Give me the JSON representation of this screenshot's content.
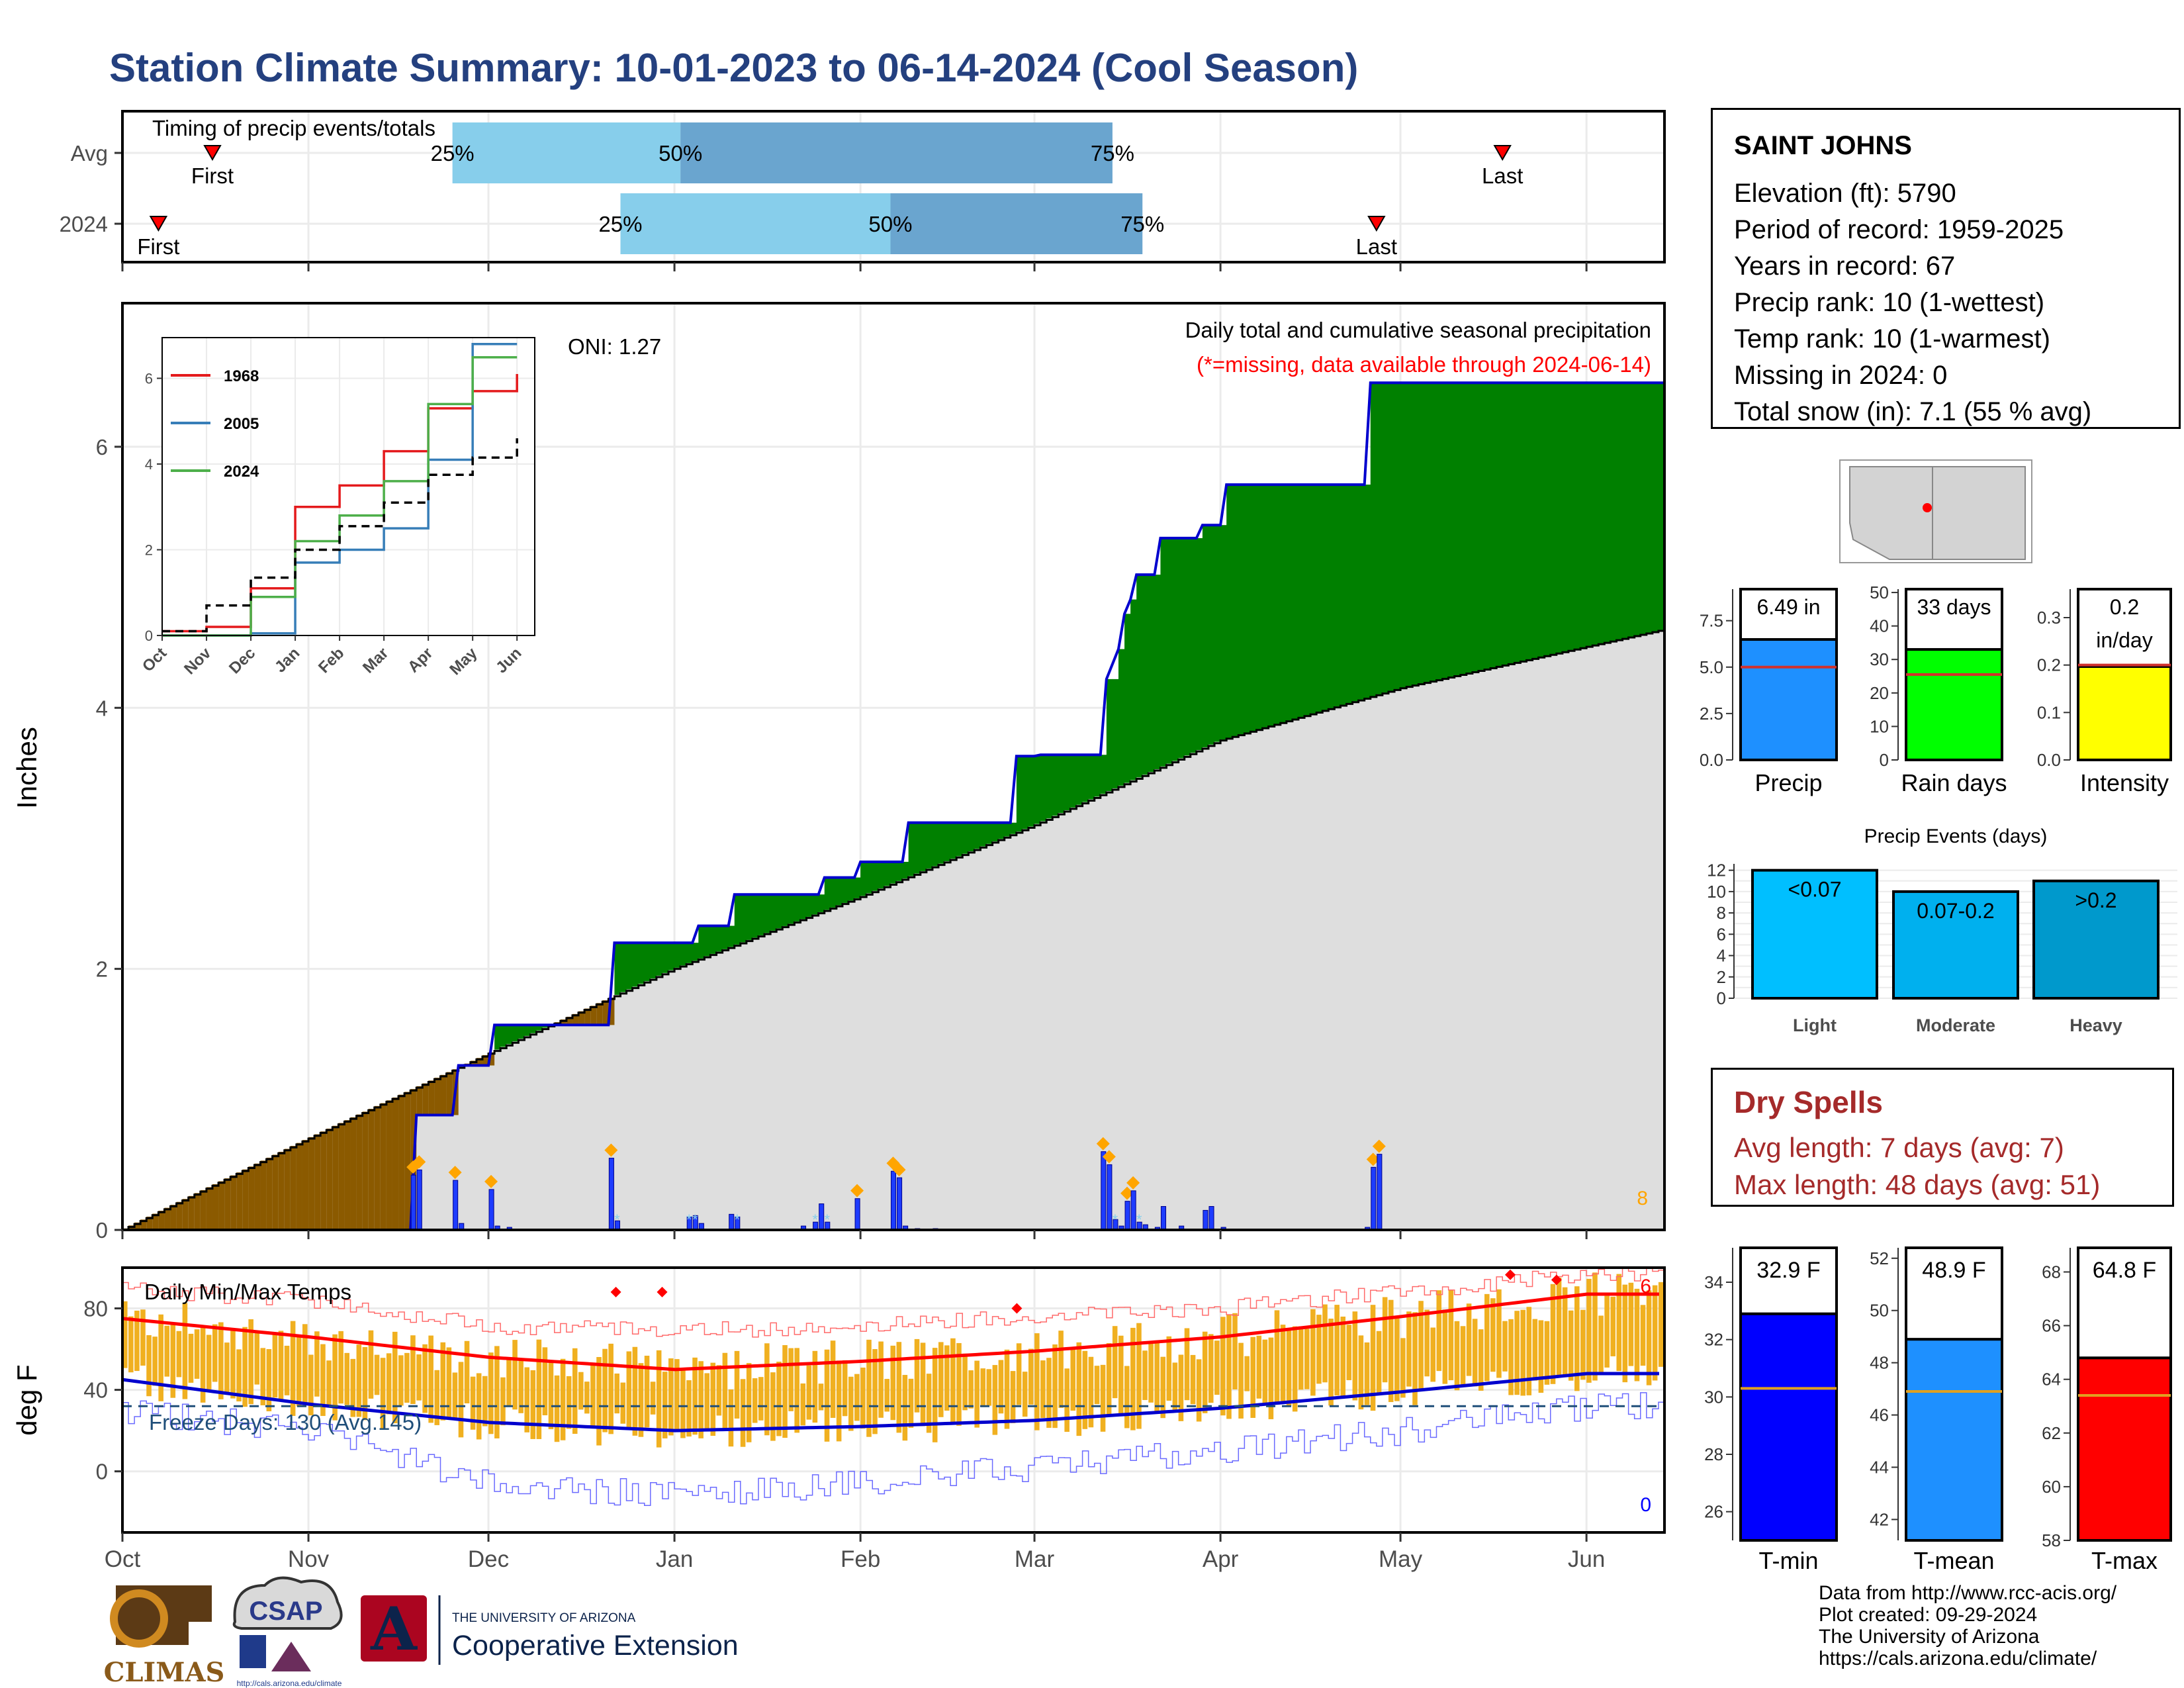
{
  "title": "Station Climate Summary: 10-01-2023 to 06-14-2024 (Cool Season)",
  "colors": {
    "title": "#24407f",
    "cum_2024": "#008000",
    "cum_dry": "#8b5a00",
    "cum_avg": "#dedede",
    "daily_bar": "#1e3cff",
    "precip_bar": "#1e90ff",
    "raindays_bar": "#00ff00",
    "intensity_bar": "#ffff00",
    "light": "#00bfff",
    "moderate": "#00a8e8",
    "heavy": "#0099cc",
    "tmin": "#0000ff",
    "tmean": "#1e90ff",
    "tmax": "#ff0000",
    "temp_bar": "#f0b020",
    "dry": "#a52a2a",
    "q1": "#87ceeb",
    "q2": "#6aa5cf"
  },
  "timing": {
    "title": "Timing of precip events/totals",
    "rows": [
      {
        "label": "Avg",
        "first": "First",
        "last": "Last",
        "p25": "25%",
        "p50": "50%",
        "p75": "75%",
        "first_date": "2023-10-16",
        "p25_date": "2023-11-25",
        "p50_date": "2024-01-02",
        "p75_date": "2024-03-14",
        "last_date": "2024-05-18"
      },
      {
        "label": "2024",
        "first": "First",
        "last": "Last",
        "p25": "25%",
        "p50": "50%",
        "p75": "75%",
        "first_date": "2023-10-07",
        "p25_date": "2023-12-23",
        "p50_date": "2024-02-06",
        "p75_date": "2024-03-19",
        "last_date": "2024-04-27"
      }
    ]
  },
  "x_months": [
    "Oct",
    "Nov",
    "Dec",
    "Jan",
    "Feb",
    "Mar",
    "Apr",
    "May",
    "Jun"
  ],
  "precip_panel": {
    "ylabel": "Inches",
    "ticks": [
      0,
      2,
      4,
      6
    ],
    "ylim": [
      0,
      7.1
    ],
    "caption": "Daily total and cumulative seasonal precipitation",
    "missing_note": "(*=missing, data available through 2024-06-14)",
    "oni": "ONI: 1.27",
    "right_count": "8"
  },
  "inset": {
    "x_ticks": [
      "Oct",
      "Nov",
      "Dec",
      "Jan",
      "Feb",
      "Mar",
      "Apr",
      "May",
      "Jun"
    ],
    "y_ticks": [
      0,
      2,
      4,
      6
    ],
    "legend": [
      {
        "name": "1968",
        "color": "#e41a1c"
      },
      {
        "name": "2005",
        "color": "#377eb8"
      },
      {
        "name": "2024",
        "color": "#4daf4a"
      }
    ]
  },
  "temp_panel": {
    "title": "Daily Min/Max Temps",
    "ylabel": "deg F",
    "ticks": [
      0,
      40,
      80
    ],
    "ylim": [
      -30,
      100
    ],
    "freeze": "Freeze Days: 130 (Avg.145)",
    "max_count": "6",
    "min_count": "0"
  },
  "station": {
    "name": "SAINT JOHNS",
    "lines": [
      "Elevation (ft): 5790",
      "Period of record: 1959-2025",
      "Years in record: 67",
      "Precip rank: 10 (1-wettest)",
      "Temp rank: 10 (1-warmest)",
      "Missing in 2024: 0",
      "Total snow (in): 7.1 (55 % avg)"
    ]
  },
  "summary_bars": [
    {
      "label": "Precip",
      "value_text": "6.49 in",
      "value": 6.49,
      "avg": 5.0,
      "ticks": [
        "0.0",
        "2.5",
        "5.0",
        "7.5"
      ],
      "tick_vals": [
        0,
        2.5,
        5,
        7.5
      ],
      "ymax": 9.2,
      "color": "#1e90ff"
    },
    {
      "label": "Rain days",
      "value_text": "33 days",
      "value": 33,
      "avg": 25.5,
      "ticks": [
        "0",
        "10",
        "20",
        "30",
        "40",
        "50"
      ],
      "tick_vals": [
        0,
        10,
        20,
        30,
        40,
        50
      ],
      "ymax": 51,
      "color": "#00ff00"
    },
    {
      "label": "Intensity",
      "value_text": "0.2",
      "value_text2": "in/day",
      "value": 0.197,
      "avg": 0.2,
      "ticks": [
        "0.0",
        "0.1",
        "0.2",
        "0.3"
      ],
      "tick_vals": [
        0,
        0.1,
        0.2,
        0.3
      ],
      "ymax": 0.36,
      "color": "#ffff00"
    }
  ],
  "precip_events": {
    "title": "Precip Events (days)",
    "ticks": [
      0,
      2,
      4,
      6,
      8,
      10,
      12
    ],
    "bars": [
      {
        "label": "Light",
        "text": "<0.07",
        "value": 12,
        "color": "#00bfff"
      },
      {
        "label": "Moderate",
        "text": "0.07-0.2",
        "value": 10,
        "color": "#00b0ee"
      },
      {
        "label": "Heavy",
        "text": ">0.2",
        "value": 11,
        "color": "#0099cc"
      }
    ]
  },
  "dry_spells": {
    "title": "Dry Spells",
    "avg": "Avg length: 7 days (avg: 7)",
    "max": "Max length: 48 days (avg: 51)"
  },
  "temp_bars": [
    {
      "label": "T-min",
      "value_text": "32.9 F",
      "value": 32.9,
      "avg": 30.3,
      "ticks": [
        26,
        28,
        30,
        32,
        34
      ],
      "ymin": 25,
      "ymax": 35.2,
      "color": "#0000ff"
    },
    {
      "label": "T-mean",
      "value_text": "48.9 F",
      "value": 48.9,
      "avg": 46.9,
      "ticks": [
        42,
        44,
        46,
        48,
        50,
        52
      ],
      "ymin": 41.2,
      "ymax": 52.4,
      "color": "#1e90ff"
    },
    {
      "label": "T-max",
      "value_text": "64.8 F",
      "value": 64.8,
      "avg": 63.4,
      "ticks": [
        58,
        60,
        62,
        64,
        66,
        68
      ],
      "ymin": 58,
      "ymax": 68.9,
      "color": "#ff0000"
    }
  ],
  "logos": {
    "climas": "CLIMAS",
    "csap": "CSAP",
    "csap_url": "http://cals.arizona.edu/climate",
    "ua_line1": "THE UNIVERSITY OF ARIZONA",
    "ua_line2": "Cooperative Extension",
    "ua_mark": "A"
  },
  "credits": [
    "Data from http://www.rcc-acis.org/",
    "Plot created: 09-29-2024",
    "The University of Arizona",
    "https://cals.arizona.edu/climate/"
  ],
  "chart_data": [
    {
      "type": "area",
      "title": "Daily total and cumulative seasonal precipitation",
      "ylabel": "Inches",
      "ylim": [
        0,
        7.1
      ],
      "series": [
        {
          "name": "2024",
          "x": [
            "2023-10-01",
            "2023-11-18",
            "2023-11-19",
            "2023-11-25",
            "2023-11-26",
            "2023-12-01",
            "2023-12-02",
            "2023-12-21",
            "2023-12-22",
            "2024-01-04",
            "2024-01-05",
            "2024-01-10",
            "2024-01-11",
            "2024-01-25",
            "2024-01-26",
            "2024-01-31",
            "2024-02-01",
            "2024-02-08",
            "2024-02-09",
            "2024-02-26",
            "2024-02-27",
            "2024-03-01",
            "2024-03-02",
            "2024-03-10",
            "2024-03-12",
            "2024-03-13",
            "2024-03-15",
            "2024-03-16",
            "2024-03-17",
            "2024-03-18",
            "2024-03-21",
            "2024-03-22",
            "2024-03-28",
            "2024-03-29",
            "2024-04-01",
            "2024-04-02",
            "2024-04-25",
            "2024-04-26",
            "2024-06-14"
          ],
          "values": [
            0,
            0,
            0.88,
            0.88,
            1.26,
            1.26,
            1.57,
            1.57,
            2.2,
            2.2,
            2.33,
            2.33,
            2.57,
            2.57,
            2.7,
            2.7,
            2.82,
            2.82,
            3.12,
            3.12,
            3.63,
            3.63,
            3.64,
            3.64,
            3.64,
            4.22,
            4.45,
            4.72,
            4.83,
            5.02,
            5.02,
            5.3,
            5.3,
            5.4,
            5.4,
            5.71,
            5.71,
            6.49,
            6.49
          ]
        },
        {
          "name": "Avg",
          "x": [
            "2023-10-01",
            "2023-11-01",
            "2023-12-01",
            "2024-01-01",
            "2024-02-01",
            "2024-03-01",
            "2024-04-01",
            "2024-05-01",
            "2024-06-14"
          ],
          "values": [
            0,
            0.7,
            1.35,
            2.0,
            2.55,
            3.1,
            3.75,
            4.15,
            4.6
          ]
        }
      ]
    },
    {
      "type": "bar",
      "title": "Daily precipitation",
      "x": [
        "2023-11-18",
        "2023-11-19",
        "2023-11-25",
        "2023-11-26",
        "2023-12-01",
        "2023-12-02",
        "2023-12-04",
        "2023-12-21",
        "2023-12-22",
        "2024-01-03",
        "2024-01-04",
        "2024-01-05",
        "2024-01-10",
        "2024-01-11",
        "2024-01-22",
        "2024-01-24",
        "2024-01-25",
        "2024-01-26",
        "2024-01-31",
        "2024-02-06",
        "2024-02-07",
        "2024-02-08",
        "2024-02-10",
        "2024-02-13",
        "2024-03-12",
        "2024-03-13",
        "2024-03-14",
        "2024-03-15",
        "2024-03-16",
        "2024-03-17",
        "2024-03-18",
        "2024-03-19",
        "2024-03-21",
        "2024-03-22",
        "2024-03-25",
        "2024-03-29",
        "2024-03-30",
        "2024-04-01",
        "2024-04-25",
        "2024-04-26",
        "2024-04-27"
      ],
      "values": [
        0.42,
        0.46,
        0.38,
        0.05,
        0.31,
        0.03,
        0.02,
        0.55,
        0.07,
        0.1,
        0.11,
        0.05,
        0.12,
        0.1,
        0.03,
        0.06,
        0.2,
        0.06,
        0.24,
        0.45,
        0.4,
        0.03,
        0.01,
        0.01,
        0.6,
        0.5,
        0.08,
        0.03,
        0.22,
        0.3,
        0.06,
        0.04,
        0.02,
        0.18,
        0.03,
        0.15,
        0.18,
        0.02,
        0.02,
        0.48,
        0.58
      ]
    },
    {
      "type": "line",
      "title": "Cumulative precipitation comparison",
      "x": [
        "Oct",
        "Nov",
        "Dec",
        "Jan",
        "Feb",
        "Mar",
        "Apr",
        "May",
        "Jun"
      ],
      "series": [
        {
          "name": "1968",
          "values": [
            0.1,
            0.2,
            1.1,
            3.0,
            3.5,
            4.3,
            5.3,
            5.7,
            6.1
          ]
        },
        {
          "name": "2005",
          "values": [
            0,
            0,
            0.05,
            1.7,
            2.0,
            2.5,
            4.1,
            6.8,
            6.8
          ]
        },
        {
          "name": "2024",
          "values": [
            0,
            0,
            0.9,
            2.2,
            2.8,
            3.6,
            5.4,
            6.49,
            6.49
          ]
        },
        {
          "name": "Avg",
          "values": [
            0.1,
            0.7,
            1.35,
            2.0,
            2.55,
            3.1,
            3.75,
            4.15,
            4.6
          ]
        }
      ]
    },
    {
      "type": "line",
      "title": "Daily Min/Max Temps",
      "ylabel": "deg F",
      "ylim": [
        -30,
        100
      ],
      "x": [
        "Oct",
        "Nov",
        "Dec",
        "Jan",
        "Feb",
        "Mar",
        "Apr",
        "May",
        "Jun"
      ],
      "series": [
        {
          "name": "Normal max",
          "values": [
            75,
            66,
            56,
            50,
            54,
            59,
            66,
            76,
            87
          ]
        },
        {
          "name": "Normal min",
          "values": [
            45,
            33,
            24,
            20,
            22,
            25,
            31,
            39,
            48
          ]
        },
        {
          "name": "Record max",
          "values": [
            89,
            84,
            71,
            69,
            71,
            76,
            80,
            88,
            97
          ]
        },
        {
          "name": "Record min",
          "values": [
            30,
            20,
            -7,
            -12,
            -6,
            2,
            10,
            20,
            32
          ]
        }
      ],
      "freeze_line": 32
    },
    {
      "type": "bar",
      "title": "Precip Events (days)",
      "categories": [
        "Light",
        "Moderate",
        "Heavy"
      ],
      "values": [
        12,
        10,
        11
      ]
    }
  ]
}
